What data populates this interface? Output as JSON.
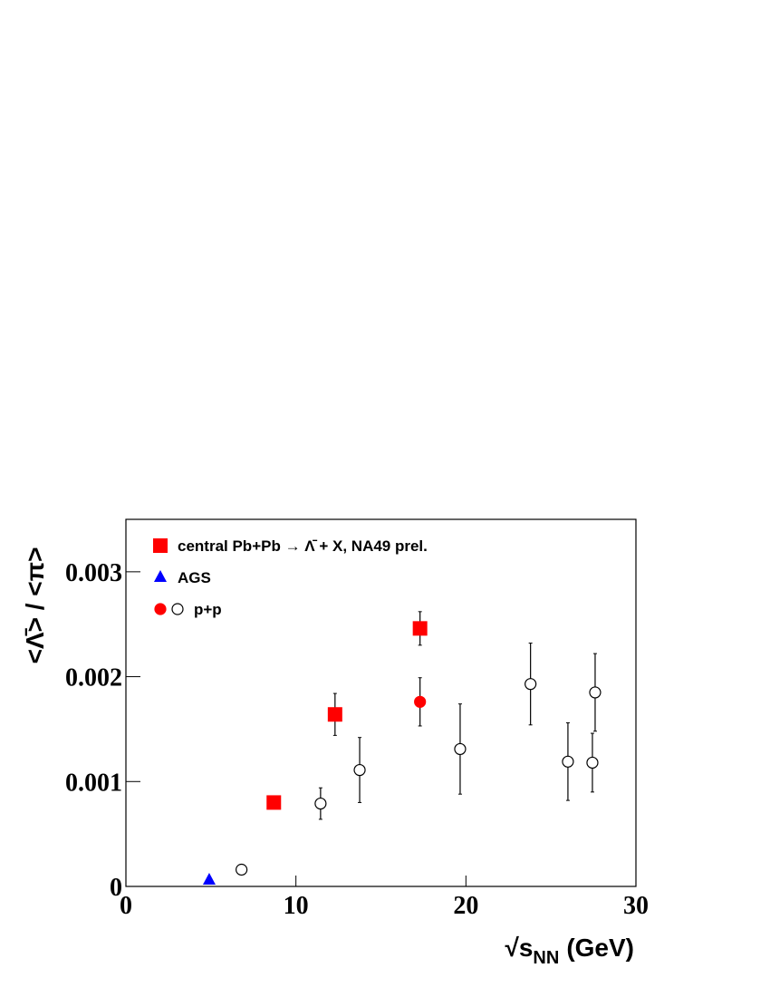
{
  "chart_data": {
    "type": "scatter",
    "y_label": "<Λ̄> / <π>",
    "x_label": "√s",
    "x_label_sub": "NN",
    "x_label_unit": "(GeV)",
    "xlim": [
      0,
      30
    ],
    "xticks": [
      0,
      10,
      20,
      30
    ],
    "ylim": [
      0,
      0.0035
    ],
    "yticks": [
      0,
      0.001,
      0.002,
      0.003
    ],
    "series": [
      {
        "name": "central Pb+Pb → Λ̄ + X, NA49 prel.",
        "marker": "square",
        "color": "#ff0000",
        "x": [
          8.7,
          12.3,
          17.3
        ],
        "values": [
          0.0008,
          0.00164,
          0.00246
        ],
        "errors": [
          0,
          0.0002,
          0.00016
        ],
        "fills": [
          "#ff0000",
          "#ff0000",
          "#ff0000"
        ]
      },
      {
        "name": "AGS",
        "marker": "triangle",
        "color": "#0000ff",
        "x": [
          4.9
        ],
        "values": [
          6e-05
        ],
        "errors": [
          0
        ],
        "fills": [
          "#0000ff"
        ]
      },
      {
        "name": "p+p",
        "marker": "circle",
        "color": "#000000",
        "x": [
          17.3,
          6.8,
          11.45,
          13.75,
          19.66,
          23.8,
          26.0,
          27.44,
          27.6
        ],
        "values": [
          0.00176,
          0.00016,
          0.00079,
          0.00111,
          0.00131,
          0.00193,
          0.00119,
          0.00118,
          0.00185
        ],
        "errors": [
          0.00023,
          0,
          0.00015,
          0.00031,
          0.00043,
          0.00039,
          0.00037,
          0.00028,
          0.00037
        ],
        "fills": [
          "#ff0000",
          "#ffffff",
          "#ffffff",
          "#ffffff",
          "#ffffff",
          "#ffffff",
          "#ffffff",
          "#ffffff",
          "#ffffff"
        ]
      }
    ]
  }
}
